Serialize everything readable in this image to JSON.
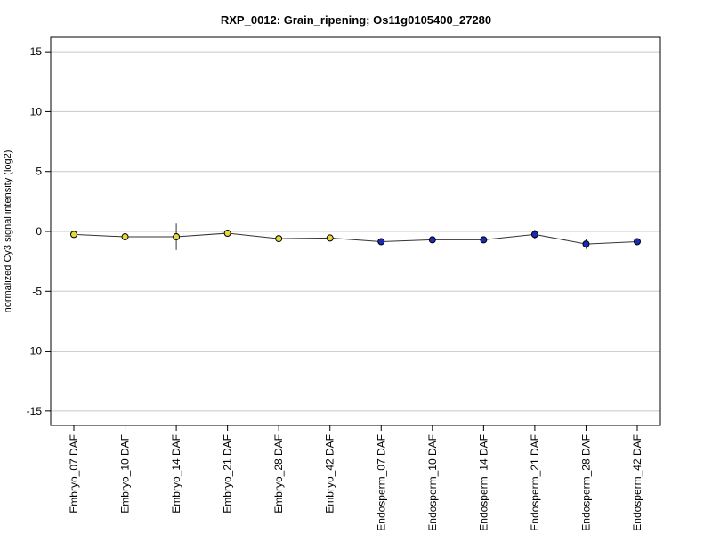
{
  "chart_data": {
    "type": "line",
    "title": "RXP_0012: Grain_ripening; Os11g0105400_27280",
    "xlabel": "",
    "ylabel": "normalized Cy3 signal intensity (log2)",
    "ylim": [
      -16.2,
      16.2
    ],
    "yticks": [
      -15,
      -10,
      -5,
      0,
      5,
      10,
      15
    ],
    "grid": true,
    "categories": [
      "Embryo_07 DAF",
      "Embryo_10 DAF",
      "Embryo_14 DAF",
      "Embryo_21 DAF",
      "Embryo_28 DAF",
      "Embryo_42 DAF",
      "Endosperm_07 DAF",
      "Endosperm_10 DAF",
      "Endosperm_14 DAF",
      "Endosperm_21 DAF",
      "Endosperm_28 DAF",
      "Endosperm_42 DAF"
    ],
    "series": [
      {
        "values": [
          -0.25,
          -0.45,
          -0.45,
          -0.15,
          -0.6,
          -0.55,
          -0.85,
          -0.7,
          -0.7,
          -0.25,
          -1.05,
          -0.85
        ],
        "error": [
          0.2,
          0.1,
          1.1,
          0.2,
          0.1,
          0.1,
          0.1,
          0.1,
          0.1,
          0.4,
          0.4,
          0.1
        ],
        "point_colors": [
          "#e6d83a",
          "#e6d83a",
          "#e6d83a",
          "#e6d83a",
          "#e6d83a",
          "#e6d83a",
          "#1a2bb8",
          "#1a2bb8",
          "#1a2bb8",
          "#1a2bb8",
          "#1a2bb8",
          "#1a2bb8"
        ]
      }
    ],
    "colors": {
      "embryo": "#e6d83a",
      "endosperm": "#1a2bb8",
      "line": "#333333",
      "grid": "#c8c8c8"
    }
  }
}
